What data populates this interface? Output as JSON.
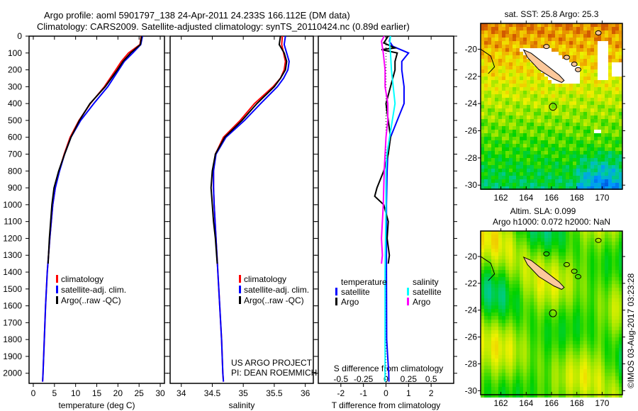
{
  "title_line1": "Argo profile: aoml 5901797_138 24-Apr-2011 24.233S 166.112E (DM data)",
  "title_line2": "Climatology: CARS2009. Satellite-adjusted climatology: synTS_20110424.nc (0.89d earlier)",
  "credit": "US ARGO PROJECT",
  "pi": "PI: DEAN ROEMMICH",
  "copyright": "©IMOS 03-Aug-2017 03:23:28",
  "colors": {
    "clim": "#ff0000",
    "sat": "#0000ff",
    "argo": "#000000",
    "sal_sat": "#00ffff",
    "sal_argo": "#ff00ff"
  },
  "chart_data": [
    {
      "type": "line",
      "name": "temperature-profile",
      "xlabel": "temperature (deg C)",
      "ylabel": "depth",
      "xlim": [
        -1,
        31
      ],
      "ylim": [
        2060,
        0
      ],
      "xticks": [
        0,
        5,
        10,
        15,
        20,
        25,
        30
      ],
      "yticks": [
        0,
        100,
        200,
        300,
        400,
        500,
        600,
        700,
        800,
        900,
        1000,
        1100,
        1200,
        1300,
        1400,
        1500,
        1600,
        1700,
        1800,
        1900,
        2000
      ],
      "legend": [
        "climatology",
        "satellite-adj. clim.",
        "Argo(..raw -QC)"
      ],
      "series": [
        {
          "name": "climatology",
          "color": "clim",
          "depth": [
            0,
            50,
            100,
            150,
            200,
            300,
            400,
            500,
            600,
            700,
            800,
            900,
            1000,
            1200,
            1400,
            1600,
            1800,
            2000,
            2050
          ],
          "values": [
            25.5,
            25.2,
            22.5,
            20.8,
            19.5,
            16.8,
            13.5,
            10.8,
            8.7,
            7.3,
            6.1,
            5.2,
            4.6,
            3.9,
            3.3,
            2.9,
            2.6,
            2.3,
            2.2
          ]
        },
        {
          "name": "satellite-adj. clim.",
          "color": "sat",
          "depth": [
            0,
            50,
            100,
            150,
            200,
            300,
            400,
            500,
            600,
            700,
            800,
            900,
            1000,
            1200,
            1400,
            1600,
            1800,
            2000,
            2050
          ],
          "values": [
            25.8,
            25.4,
            23.5,
            21.5,
            20.2,
            17.6,
            14.3,
            11.2,
            8.9,
            7.4,
            6.2,
            5.2,
            4.6,
            3.9,
            3.3,
            2.9,
            2.6,
            2.3,
            2.2
          ]
        },
        {
          "name": "Argo(..raw -QC)",
          "color": "argo",
          "depth": [
            0,
            50,
            100,
            150,
            200,
            300,
            400,
            500,
            600,
            700,
            800,
            900,
            1000,
            1100,
            1200,
            1350
          ],
          "values": [
            25.6,
            25.3,
            23.0,
            21.2,
            19.9,
            17.0,
            13.4,
            10.9,
            8.9,
            7.4,
            6.0,
            4.9,
            4.4,
            4.1,
            3.8,
            3.5
          ]
        }
      ]
    },
    {
      "type": "line",
      "name": "salinity-profile",
      "xlabel": "salinity",
      "xlim": [
        33.82,
        36.13
      ],
      "ylim": [
        2060,
        0
      ],
      "xticks": [
        34,
        34.5,
        35,
        35.5,
        36
      ],
      "legend": [
        "climatology",
        "satellite-adj. clim.",
        "Argo(..raw -QC)"
      ],
      "series": [
        {
          "name": "climatology",
          "color": "clim",
          "depth": [
            0,
            50,
            100,
            150,
            200,
            250,
            300,
            400,
            500,
            600,
            700,
            800,
            900,
            1000,
            1200,
            1400,
            1600,
            1800,
            2000,
            2050
          ],
          "values": [
            35.63,
            35.62,
            35.65,
            35.68,
            35.66,
            35.6,
            35.48,
            35.18,
            34.95,
            34.68,
            34.55,
            34.52,
            34.52,
            34.53,
            34.56,
            34.59,
            34.62,
            34.65,
            34.67,
            34.68
          ]
        },
        {
          "name": "satellite-adj. clim.",
          "color": "sat",
          "depth": [
            0,
            50,
            100,
            150,
            200,
            250,
            300,
            400,
            500,
            600,
            700,
            800,
            900,
            1000,
            1200,
            1400,
            1600,
            1800,
            2000,
            2050
          ],
          "values": [
            35.68,
            35.66,
            35.7,
            35.74,
            35.72,
            35.65,
            35.55,
            35.28,
            35.02,
            34.72,
            34.56,
            34.52,
            34.52,
            34.53,
            34.56,
            34.59,
            34.62,
            34.65,
            34.67,
            34.68
          ]
        },
        {
          "name": "Argo(..raw -QC)",
          "color": "argo",
          "depth": [
            0,
            50,
            100,
            150,
            200,
            250,
            300,
            400,
            500,
            600,
            700,
            800,
            900,
            1000,
            1100,
            1200,
            1350
          ],
          "values": [
            35.6,
            35.58,
            35.66,
            35.7,
            35.68,
            35.6,
            35.5,
            35.22,
            34.98,
            34.7,
            34.55,
            34.5,
            34.48,
            34.5,
            34.52,
            34.55,
            34.58
          ]
        }
      ]
    },
    {
      "type": "line",
      "name": "difference-profile",
      "xlabel": "T difference from climatology",
      "xlabel_top": "S difference from climatology",
      "xlim": [
        -3,
        3
      ],
      "ylim": [
        2060,
        0
      ],
      "xticks": [
        -2,
        -1,
        0,
        1,
        2
      ],
      "xticks_s": [
        "-0.5",
        "-0.25",
        "0",
        "0.25",
        "0.5"
      ],
      "legend_titles": [
        "temperature",
        "salinity"
      ],
      "legend": [
        "satellite",
        "Argo",
        "satellite",
        "Argo"
      ],
      "series": [
        {
          "name": "T satellite",
          "color": "sat",
          "depth": [
            0,
            30,
            60,
            100,
            150,
            200,
            300,
            400,
            500,
            600,
            700,
            800,
            1000,
            1400,
            1800,
            2000,
            2050
          ],
          "values": [
            0.2,
            0.15,
            0.3,
            1.0,
            0.7,
            0.7,
            0.8,
            0.8,
            0.5,
            0.2,
            0.08,
            0.05,
            0.02,
            0.02,
            0.03,
            0.12,
            0.13
          ]
        },
        {
          "name": "T Argo",
          "color": "argo",
          "depth": [
            0,
            40,
            70,
            80,
            100,
            150,
            200,
            300,
            400,
            500,
            600,
            700,
            800,
            900,
            950,
            1000,
            1100,
            1200,
            1300,
            1350
          ],
          "values": [
            0.1,
            -0.1,
            0.4,
            -0.2,
            0.5,
            0.4,
            0.4,
            0.2,
            0.0,
            0.1,
            0.2,
            0.1,
            -0.1,
            -0.4,
            -0.5,
            -0.1,
            0.1,
            0.05,
            0.15,
            0.1
          ]
        },
        {
          "name": "S satellite",
          "color": "sal_sat",
          "depth": [
            0,
            50,
            100,
            200,
            300,
            400,
            500,
            600,
            700,
            800,
            1000,
            1400,
            1800,
            2050
          ],
          "values": [
            0.05,
            0.04,
            0.05,
            0.06,
            0.08,
            0.1,
            0.07,
            0.04,
            0.01,
            0.0,
            0.0,
            -0.01,
            -0.01,
            -0.01
          ]
        },
        {
          "name": "S Argo",
          "color": "sal_argo",
          "depth": [
            0,
            30,
            100,
            200,
            300,
            400,
            500,
            600,
            700,
            800,
            1000,
            1100,
            1200,
            1300,
            1350
          ],
          "values": [
            -0.02,
            -0.05,
            -0.03,
            -0.01,
            -0.01,
            0.02,
            0.02,
            0.0,
            -0.01,
            -0.02,
            -0.03,
            -0.04,
            -0.05,
            -0.04,
            -0.05
          ]
        }
      ]
    },
    {
      "type": "heatmap",
      "name": "sst-map",
      "title": "sat. SST: 25.8 Argo: 25.3",
      "xticks": [
        162,
        164,
        166,
        168,
        170
      ],
      "yticks": [
        -20,
        -22,
        -24,
        -26,
        -28,
        -30
      ],
      "ytick_labels": [
        "-20",
        "-22",
        "-24",
        "-26",
        "-28",
        "-30"
      ],
      "xlim": [
        160.4,
        171.6
      ],
      "ylim": [
        -30.3,
        -18.1
      ],
      "float_position": [
        166.112,
        -24.233
      ]
    },
    {
      "type": "heatmap",
      "name": "sla-map",
      "title": "Altim. SLA: 0.099",
      "subtitle": "Argo h1000: 0.072 h2000: NaN",
      "xticks": [
        162,
        164,
        166,
        168,
        170
      ],
      "yticks": [
        -20,
        -22,
        -24,
        -26,
        -28,
        -30
      ],
      "ytick_labels": [
        "-20",
        "-22",
        "-24",
        "-26",
        "-28",
        "-30"
      ],
      "xlim": [
        160.4,
        171.6
      ],
      "ylim": [
        -30.3,
        -18.1
      ],
      "float_position": [
        166.112,
        -24.233
      ]
    }
  ]
}
